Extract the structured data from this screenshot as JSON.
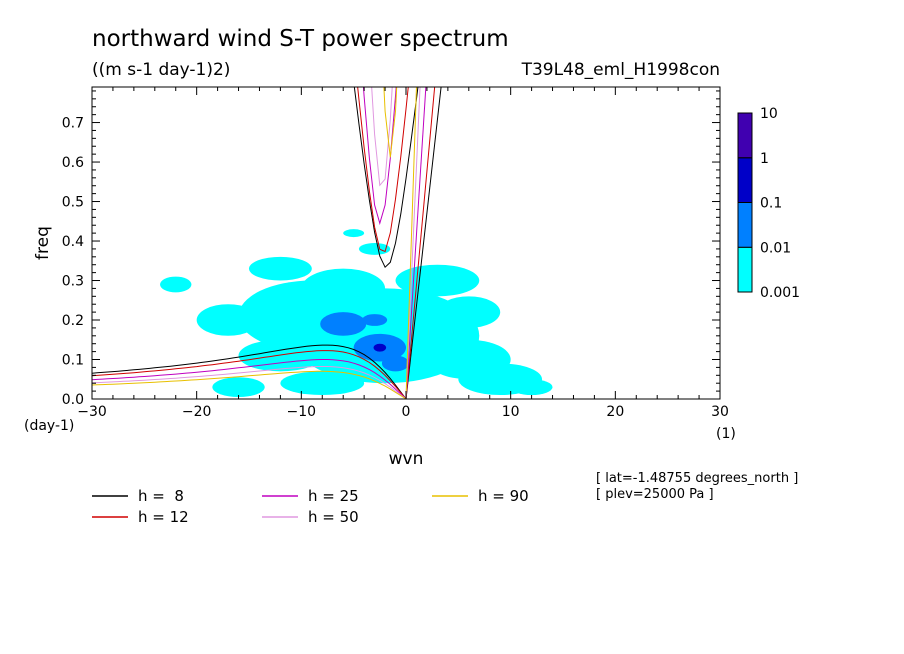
{
  "chart_data": {
    "type": "heatmap",
    "title": "northward wind S-T power spectrum",
    "subtitle": "((m s-1 day-1)2)",
    "run_label": "T39L48_eml_H1998con",
    "xlabel": "wvn",
    "ylabel": "freq",
    "x_unit": "(1)",
    "y_unit": "(day-1)",
    "xlim": [
      -30,
      30
    ],
    "ylim": [
      0,
      0.79
    ],
    "xticks": [
      -30,
      -20,
      -10,
      0,
      10,
      20,
      30
    ],
    "yticks": [
      0.0,
      0.1,
      0.2,
      0.3,
      0.4,
      0.5,
      0.6,
      0.7
    ],
    "ytick_labels": [
      "0.0",
      "0.1",
      "0.2",
      "0.3",
      "0.4",
      "0.5",
      "0.6",
      "0.7"
    ],
    "colorbar": {
      "levels": [
        "0.001",
        "0.01",
        "0.1",
        "1",
        "10"
      ],
      "colors": [
        "#00ffff",
        "#0080ff",
        "#0000c8",
        "#4000b0"
      ]
    },
    "power_patches": [
      {
        "level": 1,
        "x": -9,
        "y": 0.21,
        "rx": 7,
        "ry": 0.09
      },
      {
        "level": 1,
        "x": -2,
        "y": 0.16,
        "rx": 9,
        "ry": 0.12
      },
      {
        "level": 1,
        "x": -17,
        "y": 0.2,
        "rx": 3,
        "ry": 0.04
      },
      {
        "level": 1,
        "x": -12,
        "y": 0.33,
        "rx": 3,
        "ry": 0.03
      },
      {
        "level": 1,
        "x": -6,
        "y": 0.28,
        "rx": 4,
        "ry": 0.05
      },
      {
        "level": 1,
        "x": 3,
        "y": 0.3,
        "rx": 4,
        "ry": 0.04
      },
      {
        "level": 1,
        "x": 6,
        "y": 0.1,
        "rx": 4,
        "ry": 0.05
      },
      {
        "level": 1,
        "x": 9,
        "y": 0.05,
        "rx": 4,
        "ry": 0.04
      },
      {
        "level": 1,
        "x": 12,
        "y": 0.03,
        "rx": 2,
        "ry": 0.02
      },
      {
        "level": 1,
        "x": -12,
        "y": 0.11,
        "rx": 4,
        "ry": 0.04
      },
      {
        "level": 1,
        "x": -16,
        "y": 0.03,
        "rx": 2.5,
        "ry": 0.025
      },
      {
        "level": 1,
        "x": -8,
        "y": 0.04,
        "rx": 4,
        "ry": 0.03
      },
      {
        "level": 1,
        "x": -3,
        "y": 0.38,
        "rx": 1.5,
        "ry": 0.015
      },
      {
        "level": 1,
        "x": 6,
        "y": 0.22,
        "rx": 3,
        "ry": 0.04
      },
      {
        "level": 1,
        "x": -22,
        "y": 0.29,
        "rx": 1.5,
        "ry": 0.02
      },
      {
        "level": 1,
        "x": -5,
        "y": 0.42,
        "rx": 1,
        "ry": 0.01
      },
      {
        "level": 2,
        "x": -6,
        "y": 0.19,
        "rx": 2.2,
        "ry": 0.03
      },
      {
        "level": 2,
        "x": -2.5,
        "y": 0.13,
        "rx": 2.5,
        "ry": 0.035
      },
      {
        "level": 2,
        "x": -1,
        "y": 0.09,
        "rx": 1.3,
        "ry": 0.02
      },
      {
        "level": 2,
        "x": -3,
        "y": 0.2,
        "rx": 1.2,
        "ry": 0.015
      },
      {
        "level": 3,
        "x": -2.5,
        "y": 0.13,
        "rx": 0.6,
        "ry": 0.01
      }
    ],
    "dispersion_curves": [
      {
        "label": "h =  8",
        "h": 8,
        "color": "#000000",
        "c": 8.86,
        "beta_term": 2.73,
        "ig_min": 0.333,
        "ig_x0": -1.9
      },
      {
        "label": "h = 12",
        "h": 12,
        "color": "#d00000",
        "c": 10.85,
        "beta_term": 2.47,
        "ig_min": 0.369,
        "ig_x0": -2.2
      },
      {
        "label": "h = 25",
        "h": 25,
        "color": "#c000c0",
        "c": 15.66,
        "beta_term": 2.05,
        "ig_min": 0.445,
        "ig_x0": -2.5
      },
      {
        "label": "h = 50",
        "h": 50,
        "color": "#e098e0",
        "c": 22.15,
        "beta_term": 1.72,
        "ig_min": 0.528,
        "ig_x0": -2.3
      },
      {
        "label": "h = 90",
        "h": 90,
        "color": "#e8c000",
        "c": 29.71,
        "beta_term": 1.49,
        "ig_min": 0.612,
        "ig_x0": -1.5
      }
    ],
    "annotations": [
      "[ lat=-1.48755 degrees_north ]",
      "[ plev=25000 Pa ]"
    ]
  }
}
